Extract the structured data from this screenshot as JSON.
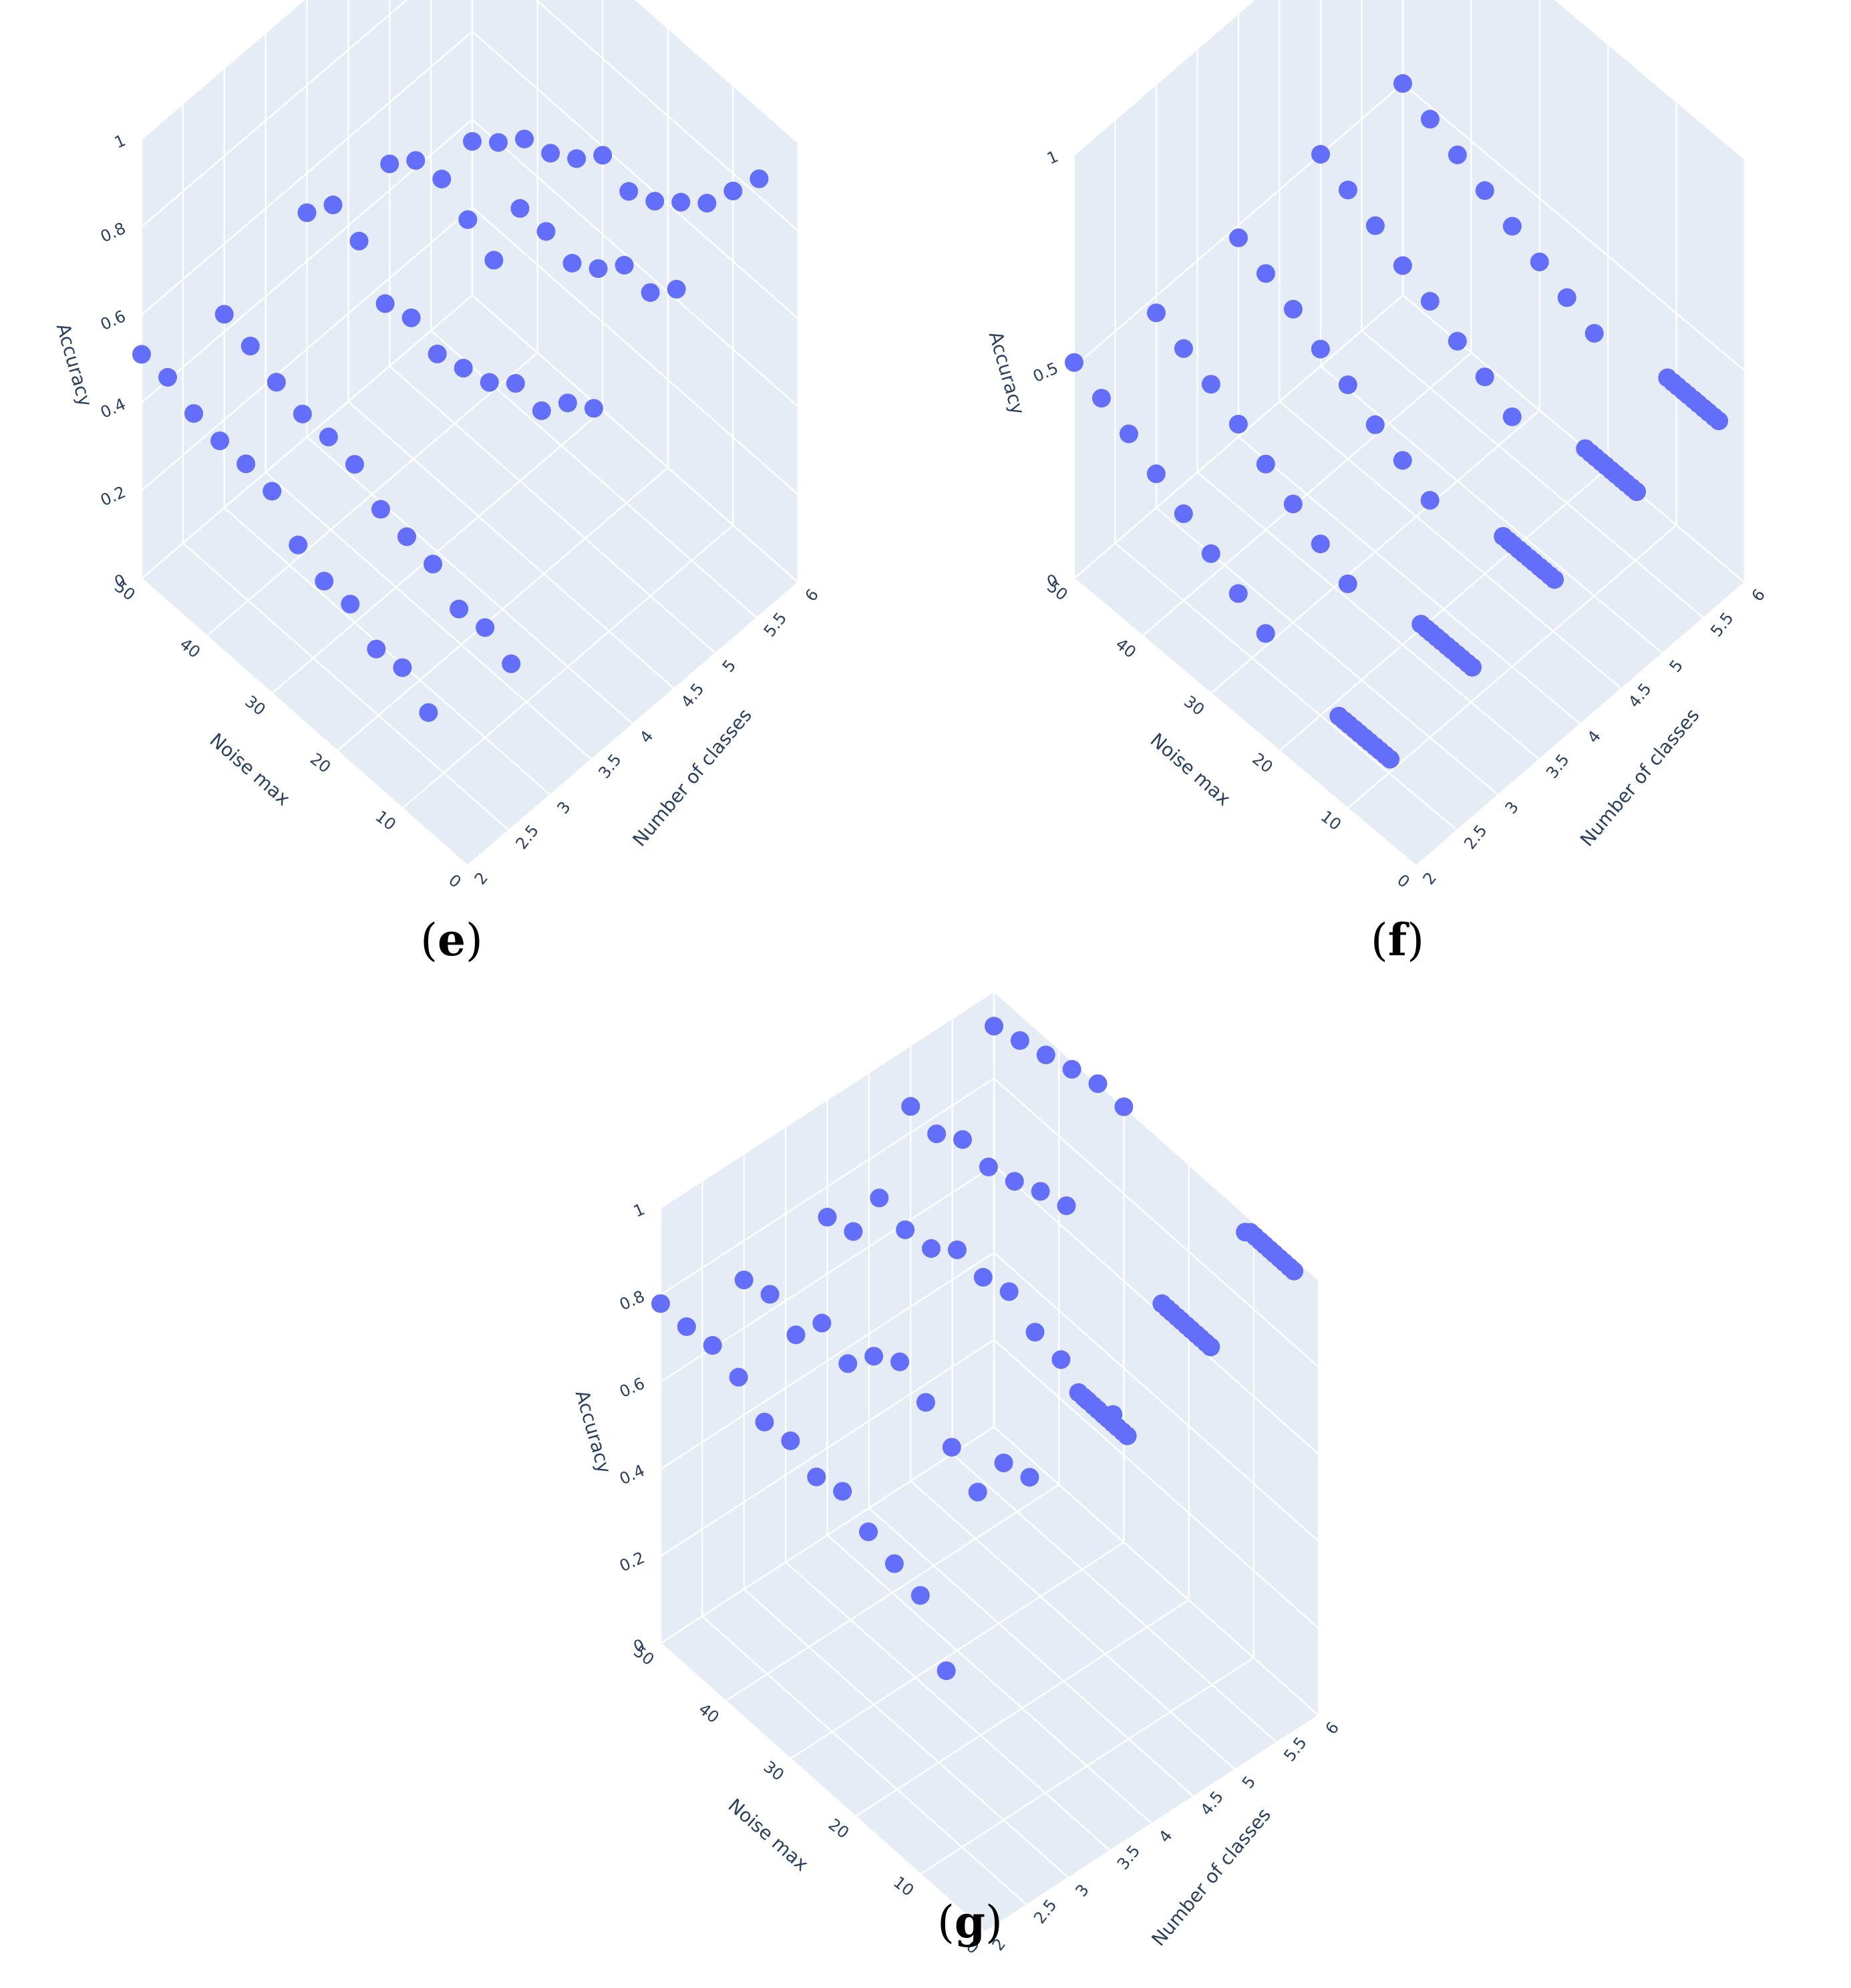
{
  "colors": {
    "marker": "#636efa",
    "face": "#e5ecf6",
    "grid": "#ffffff",
    "text": "#2a3f5f"
  },
  "chart_data": [
    {
      "id": "e",
      "caption": "e",
      "type": "scatter",
      "xlabel": "Noise max",
      "ylabel": "Number of classes",
      "zlabel": "Accuracy",
      "x_ticks": [
        "0",
        "10",
        "20",
        "30",
        "40",
        "50"
      ],
      "y_ticks": [
        "2",
        "2.5",
        "3",
        "3.5",
        "4",
        "4.5",
        "5",
        "5.5",
        "6"
      ],
      "z_ticks": [
        "0",
        "0.2",
        "0.4",
        "0.6",
        "0.8",
        "1"
      ],
      "xlim": [
        0,
        50
      ],
      "ylim": [
        2,
        6
      ],
      "zlim": [
        0,
        1
      ],
      "grid": true,
      "points": [
        [
          50,
          2,
          0.51
        ],
        [
          46,
          2,
          0.51
        ],
        [
          42,
          2,
          0.48
        ],
        [
          38,
          2,
          0.47
        ],
        [
          34,
          2,
          0.47
        ],
        [
          30,
          2,
          0.46
        ],
        [
          26,
          2,
          0.39
        ],
        [
          22,
          2,
          0.36
        ],
        [
          18,
          2,
          0.36
        ],
        [
          14,
          2,
          0.31
        ],
        [
          10,
          2,
          0.32
        ],
        [
          6,
          2,
          0.27
        ],
        [
          50,
          3,
          0.44
        ],
        [
          46,
          3,
          0.42
        ],
        [
          42,
          3,
          0.39
        ],
        [
          38,
          3,
          0.37
        ],
        [
          34,
          3,
          0.37
        ],
        [
          30,
          3,
          0.36
        ],
        [
          26,
          3,
          0.31
        ],
        [
          22,
          3,
          0.3
        ],
        [
          18,
          3,
          0.29
        ],
        [
          14,
          3,
          0.24
        ],
        [
          10,
          3,
          0.25
        ],
        [
          6,
          3,
          0.22
        ],
        [
          50,
          4,
          0.51
        ],
        [
          46,
          4,
          0.58
        ],
        [
          42,
          4,
          0.55
        ],
        [
          38,
          4,
          0.46
        ],
        [
          34,
          4,
          0.48
        ],
        [
          30,
          4,
          0.45
        ],
        [
          26,
          4,
          0.47
        ],
        [
          22,
          4,
          0.49
        ],
        [
          18,
          4,
          0.54
        ],
        [
          14,
          4,
          0.53
        ],
        [
          10,
          4,
          0.6
        ],
        [
          6,
          4,
          0.64
        ],
        [
          50,
          5,
          0.46
        ],
        [
          46,
          5,
          0.52
        ],
        [
          42,
          5,
          0.53
        ],
        [
          38,
          5,
          0.49
        ],
        [
          34,
          5,
          0.45
        ],
        [
          30,
          5,
          0.62
        ],
        [
          26,
          5,
          0.62
        ],
        [
          22,
          5,
          0.6
        ],
        [
          18,
          5,
          0.64
        ],
        [
          14,
          5,
          0.7
        ],
        [
          10,
          5,
          0.69
        ],
        [
          6,
          5,
          0.75
        ],
        [
          50,
          6,
          0.35
        ],
        [
          46,
          6,
          0.4
        ],
        [
          42,
          6,
          0.46
        ],
        [
          38,
          6,
          0.48
        ],
        [
          34,
          6,
          0.52
        ],
        [
          30,
          6,
          0.58
        ],
        [
          26,
          6,
          0.55
        ],
        [
          22,
          6,
          0.58
        ],
        [
          18,
          6,
          0.63
        ],
        [
          14,
          6,
          0.68
        ],
        [
          10,
          6,
          0.76
        ],
        [
          6,
          6,
          0.84
        ]
      ]
    },
    {
      "id": "f",
      "caption": "f",
      "type": "scatter",
      "xlabel": "Noise max",
      "ylabel": "Number of classes",
      "zlabel": "Accuracy",
      "x_ticks": [
        "0",
        "10",
        "20",
        "30",
        "40",
        "50"
      ],
      "y_ticks": [
        "2",
        "2.5",
        "3",
        "3.5",
        "4",
        "4.5",
        "5",
        "5.5",
        "6"
      ],
      "z_ticks": [
        "0",
        "0.5",
        "1"
      ],
      "xlim": [
        0,
        50
      ],
      "ylim": [
        2,
        6
      ],
      "zlim": [
        0,
        1
      ],
      "grid": true,
      "points": [
        [
          50,
          2,
          0.51
        ],
        [
          46,
          2,
          0.48
        ],
        [
          42,
          2,
          0.45
        ],
        [
          38,
          2,
          0.41
        ],
        [
          34,
          2,
          0.37
        ],
        [
          30,
          2,
          0.33
        ],
        [
          26,
          2,
          0.29
        ],
        [
          22,
          2,
          0.25
        ],
        [
          50,
          3,
          0.46
        ],
        [
          46,
          3,
          0.43
        ],
        [
          42,
          3,
          0.4
        ],
        [
          38,
          3,
          0.36
        ],
        [
          34,
          3,
          0.32
        ],
        [
          30,
          3,
          0.28
        ],
        [
          26,
          3,
          0.24
        ],
        [
          22,
          3,
          0.2
        ],
        [
          50,
          4,
          0.47
        ],
        [
          46,
          4,
          0.44
        ],
        [
          42,
          4,
          0.41
        ],
        [
          38,
          4,
          0.37
        ],
        [
          34,
          4,
          0.34
        ],
        [
          30,
          4,
          0.3
        ],
        [
          26,
          4,
          0.27
        ],
        [
          22,
          4,
          0.23
        ],
        [
          50,
          5,
          0.5
        ],
        [
          46,
          5,
          0.47
        ],
        [
          42,
          5,
          0.44
        ],
        [
          38,
          5,
          0.4
        ],
        [
          34,
          5,
          0.37
        ],
        [
          30,
          5,
          0.33
        ],
        [
          26,
          5,
          0.3
        ],
        [
          22,
          5,
          0.26
        ],
        [
          50,
          6,
          0.5
        ],
        [
          46,
          6,
          0.47
        ],
        [
          42,
          6,
          0.44
        ],
        [
          38,
          6,
          0.41
        ],
        [
          34,
          6,
          0.38
        ],
        [
          30,
          6,
          0.35
        ],
        [
          26,
          6,
          0.32
        ],
        [
          22,
          6,
          0.29
        ],
        [
          11.3,
          2,
          0.2
        ],
        [
          10.5,
          2,
          0.2
        ],
        [
          9.8,
          2,
          0.2
        ],
        [
          9,
          2,
          0.2
        ],
        [
          8.3,
          2,
          0.2
        ],
        [
          7.5,
          2,
          0.2
        ],
        [
          6.8,
          2,
          0.2
        ],
        [
          6,
          2,
          0.2
        ],
        [
          5.3,
          2,
          0.2
        ],
        [
          4.5,
          2,
          0.2
        ],
        [
          3.8,
          2,
          0.2
        ],
        [
          11.3,
          3,
          0.25
        ],
        [
          10.5,
          3,
          0.25
        ],
        [
          9.8,
          3,
          0.25
        ],
        [
          9,
          3,
          0.25
        ],
        [
          8.3,
          3,
          0.25
        ],
        [
          7.5,
          3,
          0.25
        ],
        [
          6.8,
          3,
          0.25
        ],
        [
          6,
          3,
          0.25
        ],
        [
          5.3,
          3,
          0.25
        ],
        [
          4.5,
          3,
          0.25
        ],
        [
          3.8,
          3,
          0.25
        ],
        [
          11.3,
          4,
          0.29
        ],
        [
          10.5,
          4,
          0.29
        ],
        [
          9.8,
          4,
          0.29
        ],
        [
          9,
          4,
          0.29
        ],
        [
          8.3,
          4,
          0.29
        ],
        [
          7.5,
          4,
          0.29
        ],
        [
          6.8,
          4,
          0.29
        ],
        [
          6,
          4,
          0.29
        ],
        [
          5.3,
          4,
          0.29
        ],
        [
          4.5,
          4,
          0.29
        ],
        [
          3.8,
          4,
          0.29
        ],
        [
          11.3,
          5,
          0.33
        ],
        [
          10.5,
          5,
          0.33
        ],
        [
          9.8,
          5,
          0.33
        ],
        [
          9,
          5,
          0.33
        ],
        [
          8.3,
          5,
          0.33
        ],
        [
          7.5,
          5,
          0.33
        ],
        [
          6.8,
          5,
          0.33
        ],
        [
          6,
          5,
          0.33
        ],
        [
          5.3,
          5,
          0.33
        ],
        [
          4.5,
          5,
          0.33
        ],
        [
          3.8,
          5,
          0.33
        ],
        [
          11.3,
          6,
          0.33
        ],
        [
          10.5,
          6,
          0.33
        ],
        [
          9.8,
          6,
          0.33
        ],
        [
          9,
          6,
          0.33
        ],
        [
          8.3,
          6,
          0.33
        ],
        [
          7.5,
          6,
          0.33
        ],
        [
          6.8,
          6,
          0.33
        ],
        [
          6,
          6,
          0.33
        ],
        [
          5.3,
          6,
          0.33
        ],
        [
          4.5,
          6,
          0.33
        ],
        [
          3.8,
          6,
          0.33
        ]
      ]
    },
    {
      "id": "g",
      "caption": "g",
      "type": "scatter",
      "xlabel": "Noise max",
      "ylabel": "Number of classes",
      "zlabel": "Accuracy",
      "x_ticks": [
        "0",
        "10",
        "20",
        "30",
        "40",
        "50"
      ],
      "y_ticks": [
        "2",
        "2.5",
        "3",
        "3.5",
        "4",
        "4.5",
        "5",
        "5.5",
        "6"
      ],
      "z_ticks": [
        "0",
        "0.2",
        "0.4",
        "0.6",
        "0.8",
        "1"
      ],
      "xlim": [
        0,
        50
      ],
      "ylim": [
        2,
        6
      ],
      "zlim": [
        0,
        1
      ],
      "grid": true,
      "points": [
        [
          50,
          2,
          0.78
        ],
        [
          46,
          2,
          0.78
        ],
        [
          42,
          2,
          0.79
        ],
        [
          38,
          2,
          0.77
        ],
        [
          34,
          2,
          0.72
        ],
        [
          30,
          2,
          0.73
        ],
        [
          26,
          2,
          0.7
        ],
        [
          22,
          2,
          0.72
        ],
        [
          18,
          2,
          0.68
        ],
        [
          14,
          2,
          0.66
        ],
        [
          10,
          2,
          0.64
        ],
        [
          6,
          2,
          0.52
        ],
        [
          50,
          3,
          0.71
        ],
        [
          46,
          3,
          0.73
        ],
        [
          42,
          3,
          0.69
        ],
        [
          38,
          3,
          0.77
        ],
        [
          34,
          3,
          0.73
        ],
        [
          30,
          3,
          0.8
        ],
        [
          26,
          3,
          0.84
        ],
        [
          22,
          3,
          0.8
        ],
        [
          18,
          3,
          0.75
        ],
        [
          14,
          3,
          0.7
        ],
        [
          10,
          3,
          0.82
        ],
        [
          6,
          3,
          0.84
        ],
        [
          50,
          4,
          0.73
        ],
        [
          46,
          4,
          0.75
        ],
        [
          42,
          4,
          0.88
        ],
        [
          38,
          4,
          0.86
        ],
        [
          34,
          4,
          0.87
        ],
        [
          30,
          4,
          0.92
        ],
        [
          26,
          4,
          0.91
        ],
        [
          22,
          4,
          0.93
        ],
        [
          18,
          4,
          0.89
        ],
        [
          14,
          4,
          0.88
        ],
        [
          10,
          4,
          0.84
        ],
        [
          6,
          4,
          0.86
        ],
        [
          11.3,
          4,
          0.84
        ],
        [
          10.5,
          4,
          0.84
        ],
        [
          9.8,
          4,
          0.84
        ],
        [
          9,
          4,
          0.84
        ],
        [
          8.3,
          4,
          0.84
        ],
        [
          7.5,
          4,
          0.84
        ],
        [
          6.8,
          4,
          0.84
        ],
        [
          6,
          4,
          0.84
        ],
        [
          5.3,
          4,
          0.84
        ],
        [
          4.5,
          4,
          0.84
        ],
        [
          3.8,
          4,
          0.84
        ],
        [
          50,
          5,
          0.86
        ],
        [
          46,
          5,
          0.85
        ],
        [
          42,
          5,
          0.89
        ],
        [
          38,
          5,
          0.88
        ],
        [
          34,
          5,
          0.9
        ],
        [
          30,
          5,
          0.93
        ],
        [
          26,
          5,
          0.95
        ],
        [
          11.3,
          5,
          0.92
        ],
        [
          10.5,
          5,
          0.92
        ],
        [
          9.8,
          5,
          0.92
        ],
        [
          9,
          5,
          0.92
        ],
        [
          8.3,
          5,
          0.92
        ],
        [
          7.5,
          5,
          0.92
        ],
        [
          6.8,
          5,
          0.92
        ],
        [
          6,
          5,
          0.92
        ],
        [
          5.3,
          5,
          0.92
        ],
        [
          4.5,
          5,
          0.92
        ],
        [
          3.8,
          5,
          0.92
        ],
        [
          11.3,
          6,
          0.96
        ],
        [
          10.5,
          6,
          0.97
        ],
        [
          9.8,
          6,
          0.97
        ],
        [
          9,
          6,
          0.97
        ],
        [
          8.3,
          6,
          0.97
        ],
        [
          7.5,
          6,
          0.97
        ],
        [
          6.8,
          6,
          0.97
        ],
        [
          6,
          6,
          0.97
        ],
        [
          5.3,
          6,
          0.97
        ],
        [
          4.5,
          6,
          0.97
        ],
        [
          3.8,
          6,
          0.97
        ],
        [
          50,
          6,
          0.92
        ],
        [
          46,
          6,
          0.94
        ],
        [
          42,
          6,
          0.96
        ],
        [
          38,
          6,
          0.98
        ],
        [
          34,
          6,
          1.0
        ],
        [
          30,
          6,
          1.0
        ]
      ]
    }
  ]
}
